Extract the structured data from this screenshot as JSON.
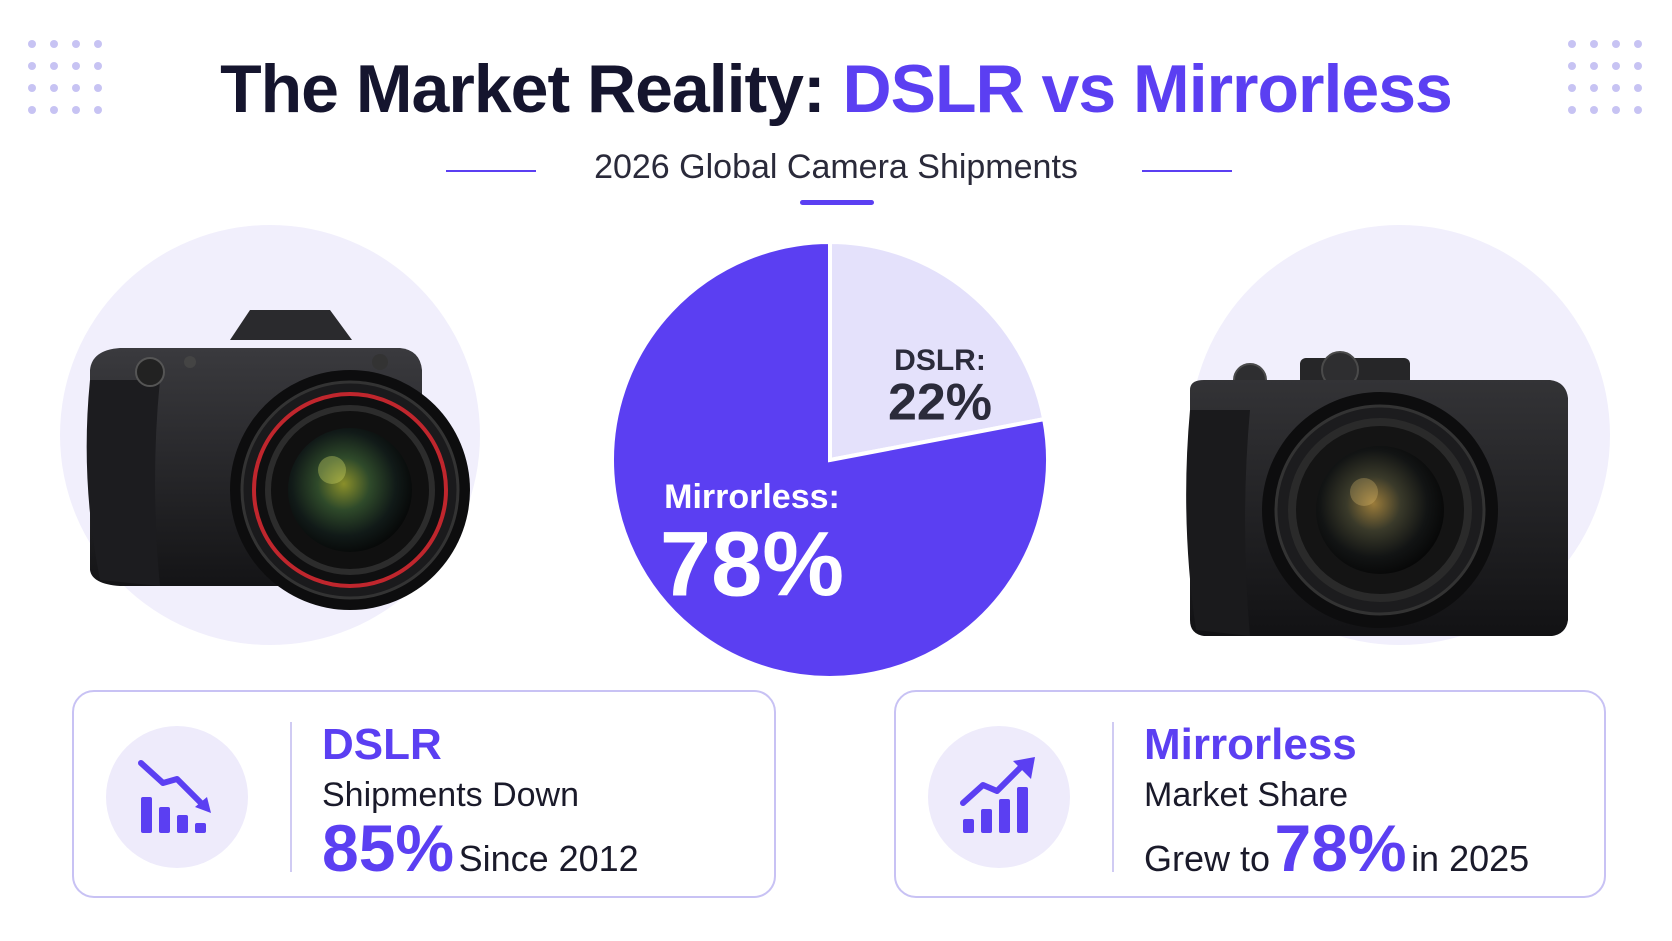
{
  "header": {
    "title_part1": "The Market Reality: ",
    "title_part2": "DSLR vs Mirrorless",
    "subtitle": "2026 Global Camera Shipments"
  },
  "colors": {
    "accent": "#5b3ff2",
    "light_accent": "#e4e1fb",
    "dark_text": "#15152e"
  },
  "chart_data": {
    "type": "pie",
    "title": "2026 Global Camera Shipments",
    "slices": [
      {
        "name": "DSLR",
        "label": "DSLR:",
        "value_label": "22%",
        "value": 22,
        "color": "#e4e1fb",
        "text_color": "#2b2b3b"
      },
      {
        "name": "Mirrorless",
        "label": "Mirrorless:",
        "value_label": "78%",
        "value": 78,
        "color": "#5b3ff2",
        "text_color": "#ffffff"
      }
    ]
  },
  "cards": {
    "dslr": {
      "icon": "chart-trending-down-icon",
      "heading": "DSLR",
      "line2": "Shipments Down",
      "big": "85%",
      "tail": "Since 2012"
    },
    "mirrorless": {
      "icon": "chart-trending-up-icon",
      "heading": "Mirrorless",
      "line2": "Market Share",
      "pre": "Grew to",
      "big": "78%",
      "tail": "in 2025"
    }
  },
  "images": {
    "left": "dslr-camera-icon",
    "right": "mirrorless-camera-icon"
  }
}
